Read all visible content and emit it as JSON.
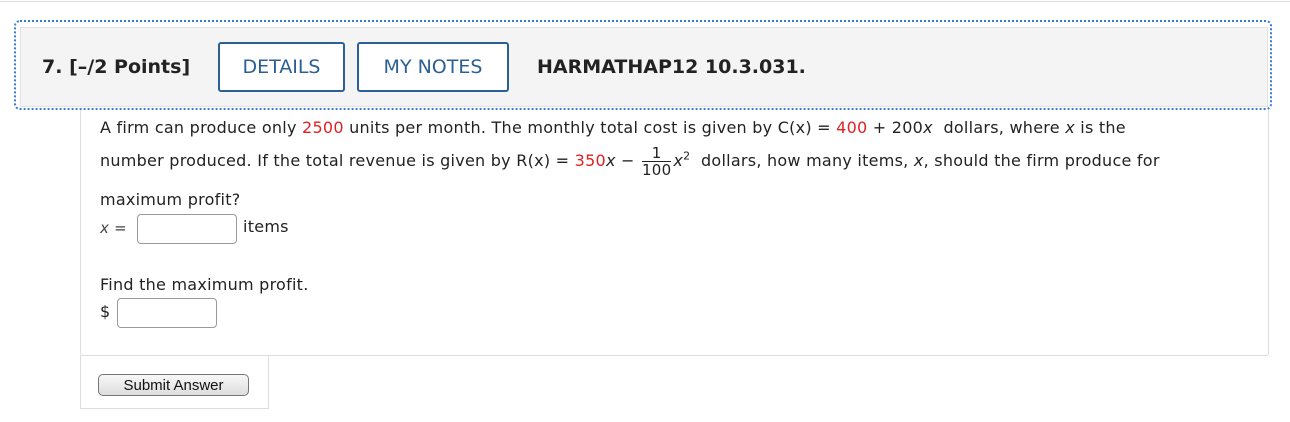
{
  "header": {
    "number": "7.",
    "points": "[–/2 Points]",
    "buttons": [
      "DETAILS",
      "MY NOTES"
    ],
    "problem_id": "HARMATHAP12 10.3.031."
  },
  "question": {
    "lines": [
      [
        "A firm can produce only ",
        "2500",
        " units per month. The monthly total cost is given by ",
        "C(x)",
        " = ",
        "400",
        " + 200",
        "x",
        "  dollars, where ",
        "x",
        " is the"
      ],
      [
        "number produced. If the total revenue is given by ",
        "R(x)",
        " = ",
        "350",
        "x",
        " − ",
        "1",
        "100",
        "x",
        "2",
        "  dollars, how many items, ",
        "x",
        ", should the firm produce for"
      ],
      [
        "maximum profit?"
      ]
    ],
    "answer_1": {
      "label": "x =",
      "unit": "items"
    },
    "prompt_2": "Find the maximum profit.",
    "answer_2": {
      "label": "$"
    },
    "submit": "Submit Answer"
  }
}
